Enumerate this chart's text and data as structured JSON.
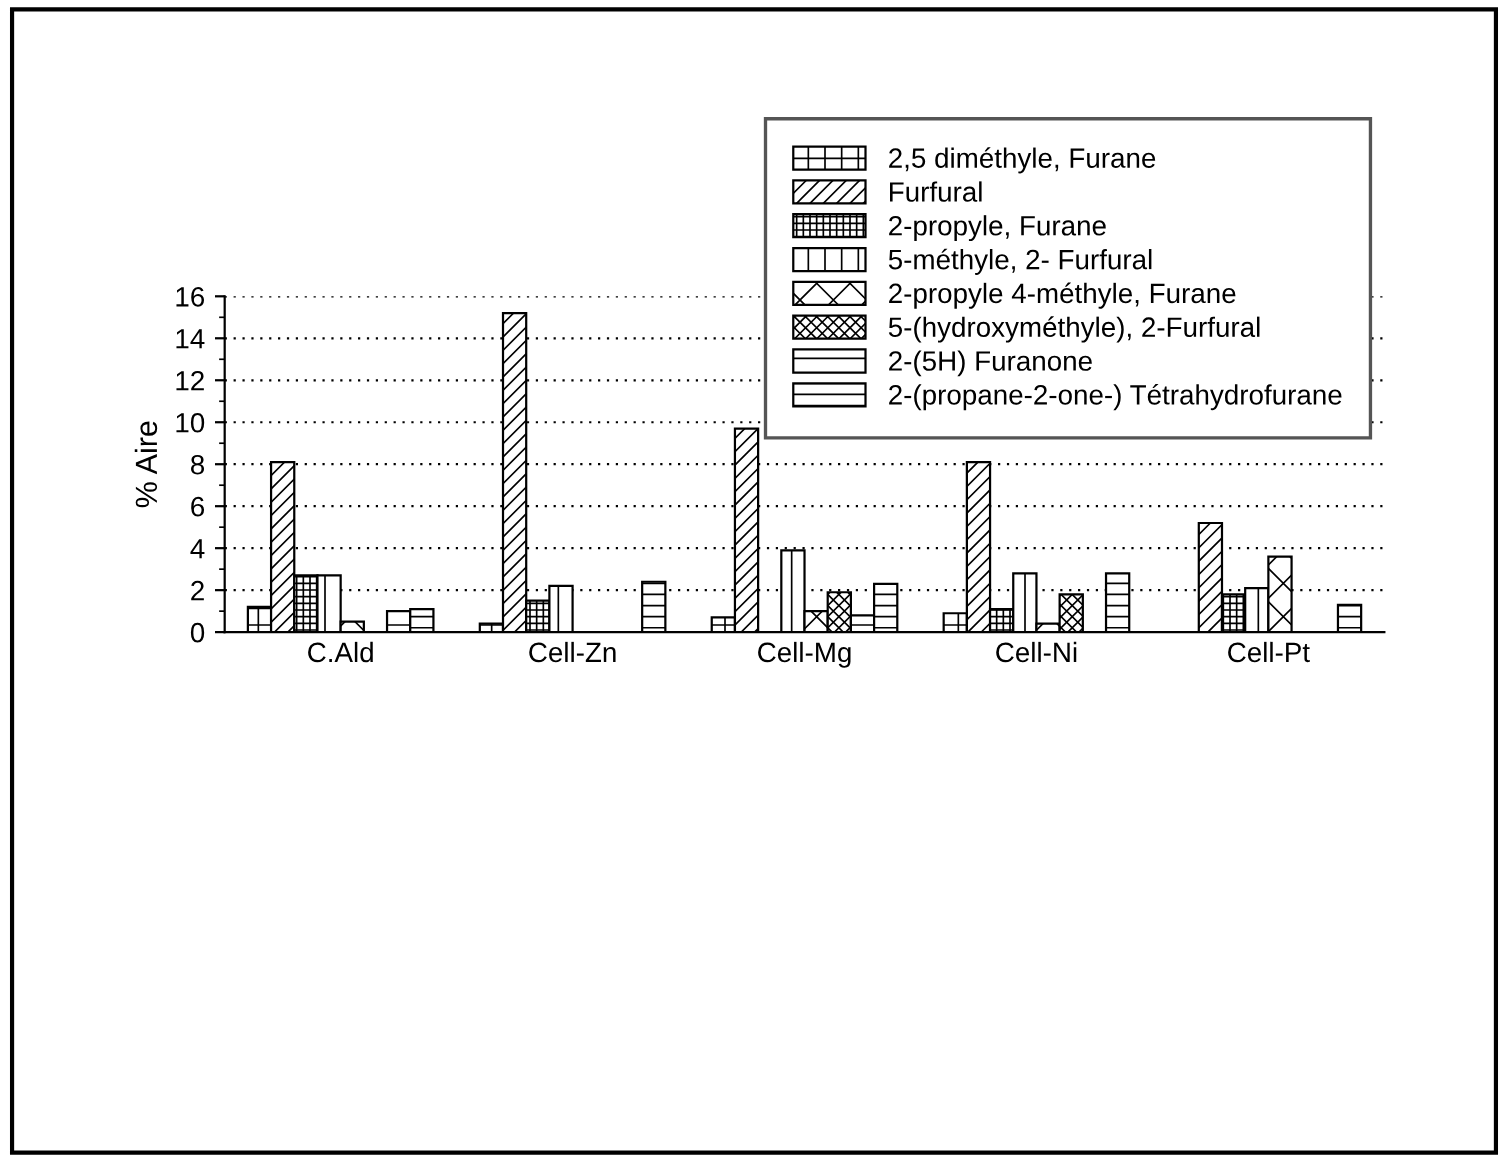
{
  "chart_data": {
    "type": "bar",
    "ylabel": "% Aire",
    "categories": [
      "C.Ald",
      "Cell-Zn",
      "Cell-Mg",
      "Cell-Ni",
      "Cell-Pt"
    ],
    "series": [
      {
        "name": "2,5 diméthyle, Furane",
        "color": "#000000",
        "values": [
          1.2,
          0.4,
          0.7,
          0.9,
          null
        ]
      },
      {
        "name": "Furfural",
        "color": "#000000",
        "values": [
          8.1,
          15.2,
          9.7,
          8.1,
          5.2
        ]
      },
      {
        "name": "2-propyle, Furane",
        "color": "#000000",
        "values": [
          2.7,
          1.5,
          null,
          1.1,
          1.8
        ]
      },
      {
        "name": "5-méthyle, 2- Furfural",
        "color": "#000000",
        "values": [
          2.7,
          2.2,
          3.9,
          2.8,
          2.1
        ]
      },
      {
        "name": "2-propyle 4-méthyle, Furane",
        "color": "#000000",
        "values": [
          0.5,
          null,
          1.0,
          0.4,
          3.6
        ]
      },
      {
        "name": "5-(hydroxyméthyle), 2-Furfural",
        "color": "#000000",
        "values": [
          null,
          null,
          1.9,
          1.8,
          null
        ]
      },
      {
        "name": "2-(5H) Furanone",
        "color": "#000000",
        "values": [
          1.0,
          null,
          0.8,
          null,
          null
        ]
      },
      {
        "name": "2-(propane-2-one-) Tétrahydrofurane",
        "color": "#000000",
        "values": [
          1.1,
          2.4,
          2.3,
          2.8,
          1.3
        ]
      }
    ],
    "ylim": [
      0,
      16
    ],
    "yticks": [
      0,
      2,
      4,
      6,
      8,
      10,
      12,
      14,
      16
    ],
    "grid": "y",
    "legend": "top right"
  }
}
